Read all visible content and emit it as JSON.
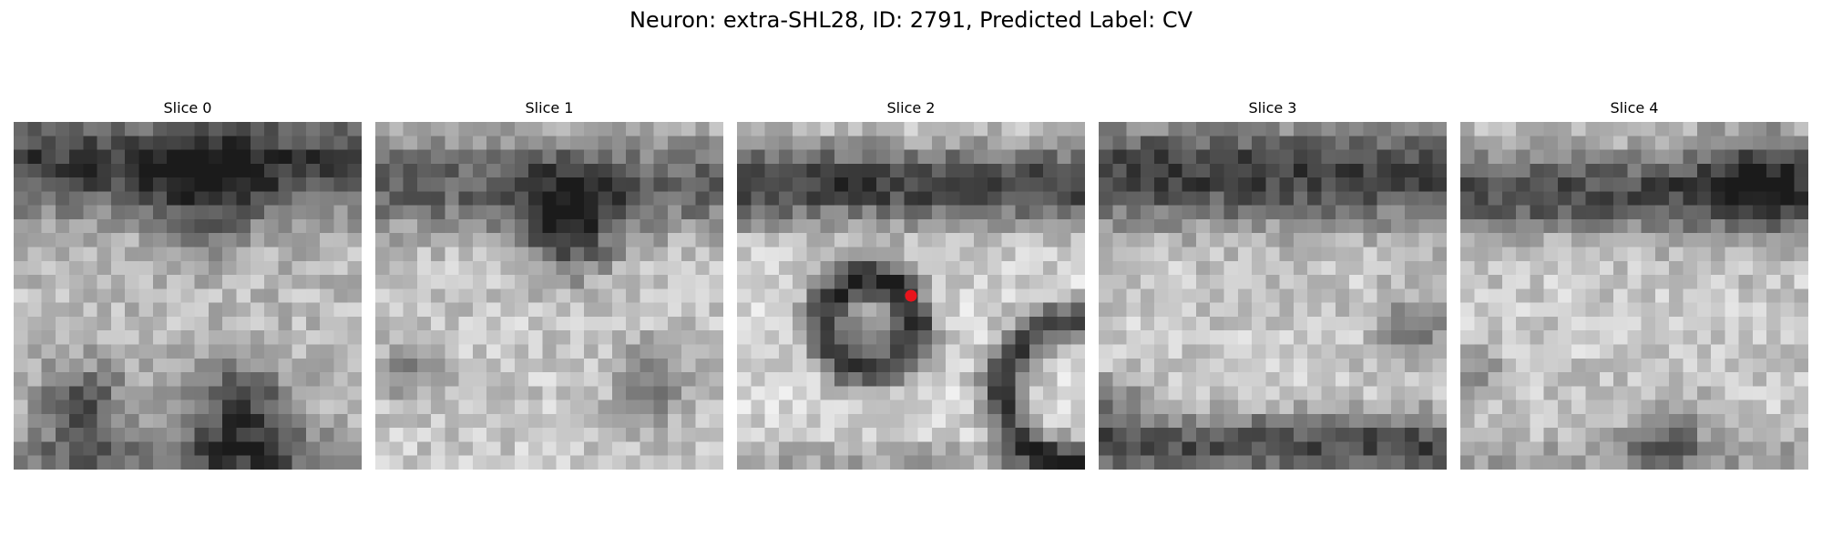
{
  "figure": {
    "title": "Neuron: extra-SHL28, ID: 2791, Predicted Label: CV"
  },
  "panels": [
    {
      "title": "Slice 0"
    },
    {
      "title": "Slice 1"
    },
    {
      "title": "Slice 2"
    },
    {
      "title": "Slice 3"
    },
    {
      "title": "Slice 4"
    }
  ],
  "colors": {
    "background": "#ffffff",
    "marker": "#e8141c",
    "colormap": "grayscale"
  }
}
